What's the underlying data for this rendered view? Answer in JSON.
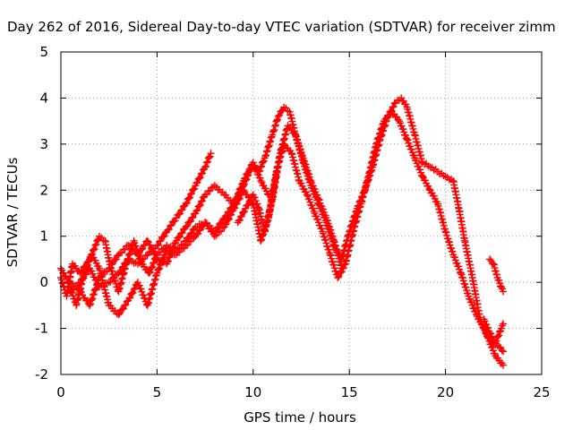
{
  "chart_data": {
    "type": "scatter",
    "title": "Day 262 of 2016, Sidereal Day-to-day VTEC variation (SDTVAR) for receiver zimm",
    "xlabel": "GPS time / hours",
    "ylabel": "SDTVAR / TECUs",
    "xlim": [
      0,
      25
    ],
    "ylim": [
      -2,
      5
    ],
    "xticks": [
      "0",
      "5",
      "10",
      "15",
      "20",
      "25"
    ],
    "yticks": [
      "-2",
      "-1",
      "0",
      "1",
      "2",
      "3",
      "4",
      "5"
    ],
    "grid": true,
    "marker": "plus",
    "color": "#ff0000",
    "series": [
      {
        "x": [
          0.0,
          0.3,
          0.6,
          1.0,
          1.5,
          2.0,
          2.3,
          2.6,
          3.0,
          3.4,
          3.8,
          4.2,
          4.6,
          5.0,
          5.5,
          6.0,
          6.5,
          7.0,
          7.5,
          8.0,
          8.5,
          9.0,
          9.5,
          9.9,
          10.3,
          10.6,
          11.0,
          11.3,
          11.6,
          11.9,
          12.2,
          12.6,
          13.0,
          13.4,
          13.8,
          14.2,
          14.6,
          15.0,
          15.4,
          15.8,
          16.2,
          16.6,
          17.0,
          17.4,
          17.7,
          18.0,
          18.4,
          18.8,
          19.2,
          19.6,
          20.0,
          20.4,
          20.7,
          21.0,
          21.4,
          21.8,
          22.2,
          22.6,
          23.0
        ],
        "y": [
          0.1,
          -0.3,
          0.4,
          0.2,
          0.5,
          1.0,
          0.9,
          0.3,
          -0.2,
          0.4,
          0.9,
          0.4,
          0.2,
          0.6,
          0.8,
          0.7,
          0.9,
          1.2,
          1.3,
          1.1,
          1.4,
          1.7,
          2.1,
          2.5,
          2.4,
          2.7,
          3.2,
          3.6,
          3.8,
          3.7,
          3.2,
          2.6,
          2.1,
          1.7,
          1.3,
          0.8,
          0.5,
          1.1,
          1.6,
          2.0,
          2.5,
          3.1,
          3.6,
          3.9,
          4.0,
          3.8,
          3.2,
          2.6,
          2.5,
          2.4,
          2.3,
          2.2,
          1.6,
          0.9,
          0.1,
          -0.8,
          -1.2,
          -1.6,
          -1.8
        ]
      },
      {
        "x": [
          0.0,
          0.4,
          0.8,
          1.2,
          1.6,
          2.0,
          2.5,
          3.0,
          3.5,
          4.0,
          4.5,
          5.0,
          5.5,
          6.0,
          6.5,
          7.0,
          7.5,
          8.0,
          8.5,
          9.0,
          9.5,
          10.0,
          10.4,
          10.8,
          11.2,
          11.6,
          12.0,
          12.4,
          12.8,
          13.2,
          13.6,
          14.0,
          14.4,
          14.8,
          15.2,
          15.6,
          16.0,
          16.4,
          16.8,
          17.2,
          17.6,
          18.0,
          18.4,
          18.8,
          19.2,
          19.6,
          20.0,
          20.4,
          20.8,
          21.2,
          21.6,
          22.0,
          22.4,
          22.8,
          23.0
        ],
        "y": [
          0.3,
          0.0,
          -0.5,
          0.2,
          0.6,
          0.3,
          -0.5,
          -0.7,
          -0.4,
          0.0,
          -0.5,
          0.2,
          0.7,
          0.6,
          0.8,
          1.0,
          1.3,
          1.0,
          1.2,
          1.6,
          2.0,
          1.7,
          0.9,
          1.4,
          2.4,
          3.0,
          2.8,
          2.2,
          1.9,
          1.5,
          1.1,
          0.6,
          0.1,
          0.4,
          1.1,
          1.7,
          2.3,
          3.0,
          3.5,
          3.7,
          3.5,
          3.1,
          2.7,
          2.3,
          2.0,
          1.7,
          1.1,
          0.6,
          0.2,
          -0.3,
          -0.7,
          -1.0,
          -1.3,
          -1.4,
          -1.5
        ]
      },
      {
        "x": [
          0.5,
          1.0,
          1.5,
          2.0,
          2.5,
          3.0,
          3.5,
          4.0,
          4.5,
          5.0,
          5.5,
          6.0,
          6.5,
          7.0,
          7.5,
          7.8
        ],
        "y": [
          -0.2,
          0.0,
          0.3,
          -0.1,
          0.0,
          0.2,
          0.5,
          0.4,
          0.6,
          0.8,
          1.1,
          1.4,
          1.7,
          2.1,
          2.5,
          2.8
        ]
      },
      {
        "x": [
          0.5,
          1.0,
          1.5,
          2.0,
          2.5,
          3.0,
          3.5,
          4.0,
          4.5,
          5.0,
          5.5,
          6.0,
          6.5,
          7.0,
          7.5,
          8.0,
          8.5,
          9.0,
          9.5,
          10.0,
          10.4,
          10.8
        ],
        "y": [
          0.0,
          -0.2,
          -0.5,
          0.1,
          0.3,
          0.6,
          0.8,
          0.6,
          0.9,
          0.5,
          0.4,
          0.9,
          1.2,
          1.5,
          1.9,
          2.1,
          1.9,
          1.7,
          2.2,
          2.6,
          2.2,
          1.9
        ]
      },
      {
        "x": [
          9.2,
          9.6,
          10.0,
          10.3,
          10.6,
          11.0,
          11.4,
          11.8,
          12.2,
          12.6,
          13.0,
          13.4,
          13.8,
          14.2,
          14.6
        ],
        "y": [
          1.3,
          1.6,
          1.9,
          1.6,
          1.1,
          1.8,
          2.8,
          3.4,
          3.2,
          2.7,
          2.2,
          1.8,
          1.4,
          0.9,
          0.3
        ]
      },
      {
        "x": [
          22.3,
          22.5,
          22.7,
          22.9,
          23.0
        ],
        "y": [
          0.5,
          0.4,
          0.1,
          -0.1,
          -0.2
        ]
      },
      {
        "x": [
          22.0,
          22.3,
          22.6,
          22.9,
          23.0
        ],
        "y": [
          -0.8,
          -1.1,
          -1.3,
          -1.0,
          -0.9
        ]
      }
    ]
  }
}
